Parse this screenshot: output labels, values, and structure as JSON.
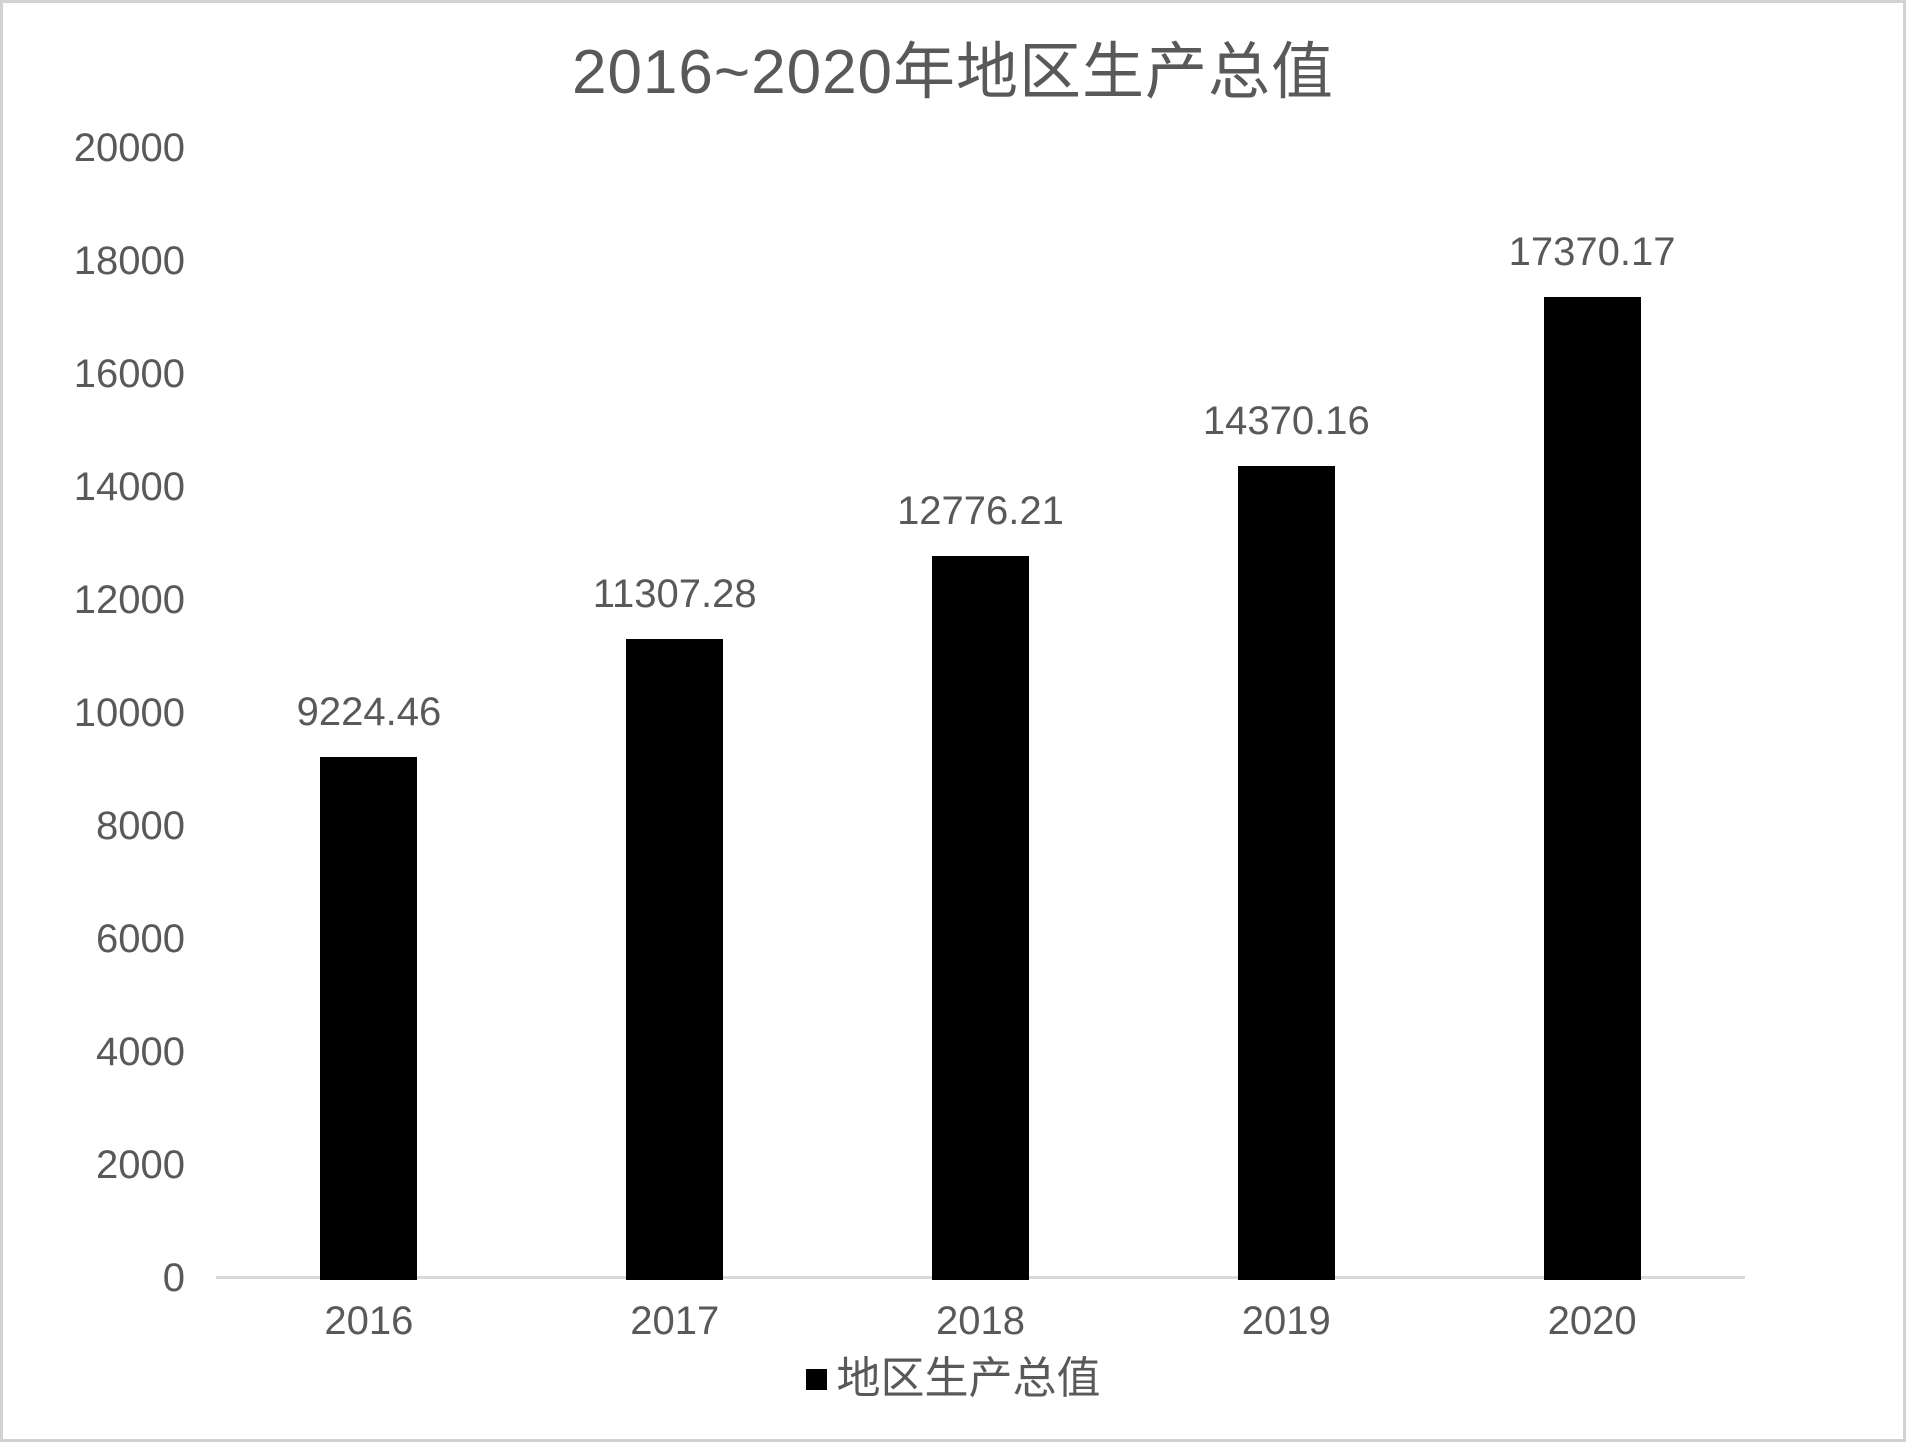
{
  "chart_data": {
    "type": "bar",
    "title": "2016~2020年地区生产总值",
    "categories": [
      "2016",
      "2017",
      "2018",
      "2019",
      "2020"
    ],
    "series": [
      {
        "name": "地区生产总值",
        "values": [
          9224.46,
          11307.28,
          12776.21,
          14370.16,
          17370.17
        ],
        "value_labels": [
          "9224.46",
          "11307.28",
          "12776.21",
          "14370.16",
          "17370.17"
        ]
      }
    ],
    "xlabel": "",
    "ylabel": "",
    "ylim": [
      0,
      20000
    ],
    "ytick_step": 2000,
    "ytick_values": [
      0,
      2000,
      4000,
      6000,
      8000,
      10000,
      12000,
      14000,
      16000,
      18000,
      20000
    ],
    "ytick_labels": [
      "0",
      "2000",
      "4000",
      "6000",
      "8000",
      "10000",
      "12000",
      "14000",
      "16000",
      "18000",
      "20000"
    ],
    "grid": false,
    "legend_position": "bottom",
    "legend_entries": [
      "地区生产总值"
    ],
    "colors": {
      "bar_fill": "#000000",
      "text": "#595959",
      "axis_line": "#d9d9d9",
      "background": "#ffffff",
      "frame_border": "#d2d2d2"
    }
  }
}
